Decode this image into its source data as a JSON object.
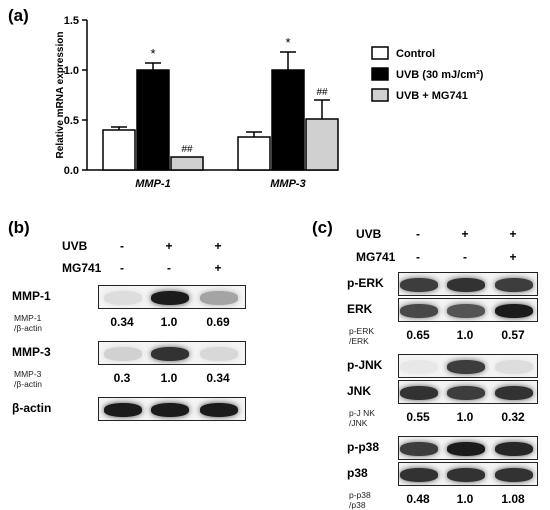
{
  "panel_a": {
    "label": "(a)",
    "chart_data": {
      "type": "bar",
      "categories": [
        "MMP-1",
        "MMP-3"
      ],
      "ylabel": "Relative mRNA expression",
      "ylim": [
        0,
        1.5
      ],
      "yticks": [
        "0.0",
        "0.5",
        "1.0",
        "1.5"
      ],
      "series": [
        {
          "name": "Control",
          "color": "#ffffff",
          "values": [
            0.4,
            0.33
          ],
          "errors": [
            0.03,
            0.05
          ],
          "annotations": [
            "",
            ""
          ]
        },
        {
          "name": "UVB (30 mJ/cm²)",
          "color": "#000000",
          "values": [
            1.0,
            1.0
          ],
          "errors": [
            0.07,
            0.18
          ],
          "annotations": [
            "*",
            "*"
          ]
        },
        {
          "name": "UVB + MG741",
          "color": "#d0d0d0",
          "values": [
            0.13,
            0.51
          ],
          "errors": [
            0.0,
            0.19
          ],
          "annotations": [
            "##",
            "##"
          ]
        }
      ],
      "legend_position": "right"
    }
  },
  "panel_b": {
    "label": "(b)",
    "rows": [
      {
        "label": "UVB",
        "signs": [
          "-",
          "+",
          "+"
        ]
      },
      {
        "label": "MG741",
        "signs": [
          "-",
          "-",
          "+"
        ]
      }
    ],
    "blots": [
      {
        "label": "MMP-1",
        "intensity": [
          0.1,
          0.95,
          0.35
        ],
        "ratio_label": [
          "MMP-1",
          "/β-actin"
        ],
        "values": [
          "0.34",
          "1.0",
          "0.69"
        ]
      },
      {
        "label": "MMP-3",
        "intensity": [
          0.15,
          0.85,
          0.12
        ],
        "ratio_label": [
          "MMP-3",
          "/β-actin"
        ],
        "values": [
          "0.3",
          "1.0",
          "0.34"
        ]
      },
      {
        "label": "β-actin",
        "intensity": [
          0.95,
          0.95,
          0.95
        ]
      }
    ]
  },
  "panel_c": {
    "label": "(c)",
    "rows": [
      {
        "label": "UVB",
        "signs": [
          "-",
          "+",
          "+"
        ]
      },
      {
        "label": "MG741",
        "signs": [
          "-",
          "-",
          "+"
        ]
      }
    ],
    "blots": [
      {
        "label": "p-ERK",
        "intensity": [
          0.8,
          0.85,
          0.8
        ]
      },
      {
        "label": "ERK",
        "intensity": [
          0.75,
          0.7,
          0.95
        ],
        "ratio_label": [
          "p-ERK",
          "/ERK"
        ],
        "values": [
          "0.65",
          "1.0",
          "0.57"
        ]
      },
      {
        "label": "p-JNK",
        "intensity": [
          0.05,
          0.8,
          0.1
        ]
      },
      {
        "label": "JNK",
        "intensity": [
          0.85,
          0.8,
          0.85
        ],
        "ratio_label": [
          "p-J NK",
          "/JNK"
        ],
        "values": [
          "0.55",
          "1.0",
          "0.32"
        ]
      },
      {
        "label": "p-p38",
        "intensity": [
          0.8,
          0.95,
          0.9
        ]
      },
      {
        "label": "p38",
        "intensity": [
          0.85,
          0.85,
          0.85
        ],
        "ratio_label": [
          "p-p38",
          "/p38"
        ],
        "values": [
          "0.48",
          "1.0",
          "1.08"
        ]
      }
    ]
  }
}
